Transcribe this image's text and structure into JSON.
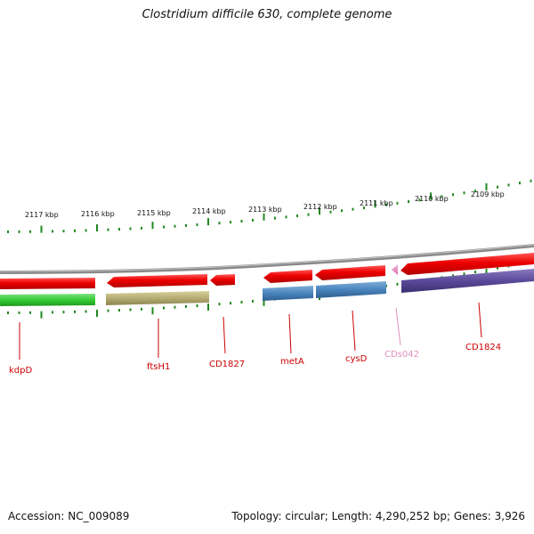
{
  "title": "Clostridium difficile 630, complete genome",
  "footer": {
    "accession": "Accession: NC_009089",
    "summary": "Topology: circular; Length: 4,290,252 bp; Genes: 3,926"
  },
  "colors": {
    "cds_red": "#ee0000",
    "backbone": "#8a8a8a",
    "tick": "#228822",
    "label_red": "#cc0000",
    "label_pink": "#e090c0"
  },
  "scale_labels": [
    "2117 kbp",
    "2116 kbp",
    "2115 kbp",
    "2114 kbp",
    "2113 kbp",
    "2112 kbp",
    "2111 kbp",
    "2110 kbp",
    "2109 kbp"
  ],
  "features": [
    {
      "label": "kdpD",
      "label_color": "#cc0000"
    },
    {
      "label": "ftsH1",
      "label_color": "#cc0000"
    },
    {
      "label": "CD1827",
      "label_color": "#cc0000"
    },
    {
      "label": "metA",
      "label_color": "#cc0000"
    },
    {
      "label": "cysD",
      "label_color": "#cc0000"
    },
    {
      "label": "CDs042",
      "label_color": "#e090c0"
    },
    {
      "label": "CD1824",
      "label_color": "#cc0000"
    }
  ]
}
